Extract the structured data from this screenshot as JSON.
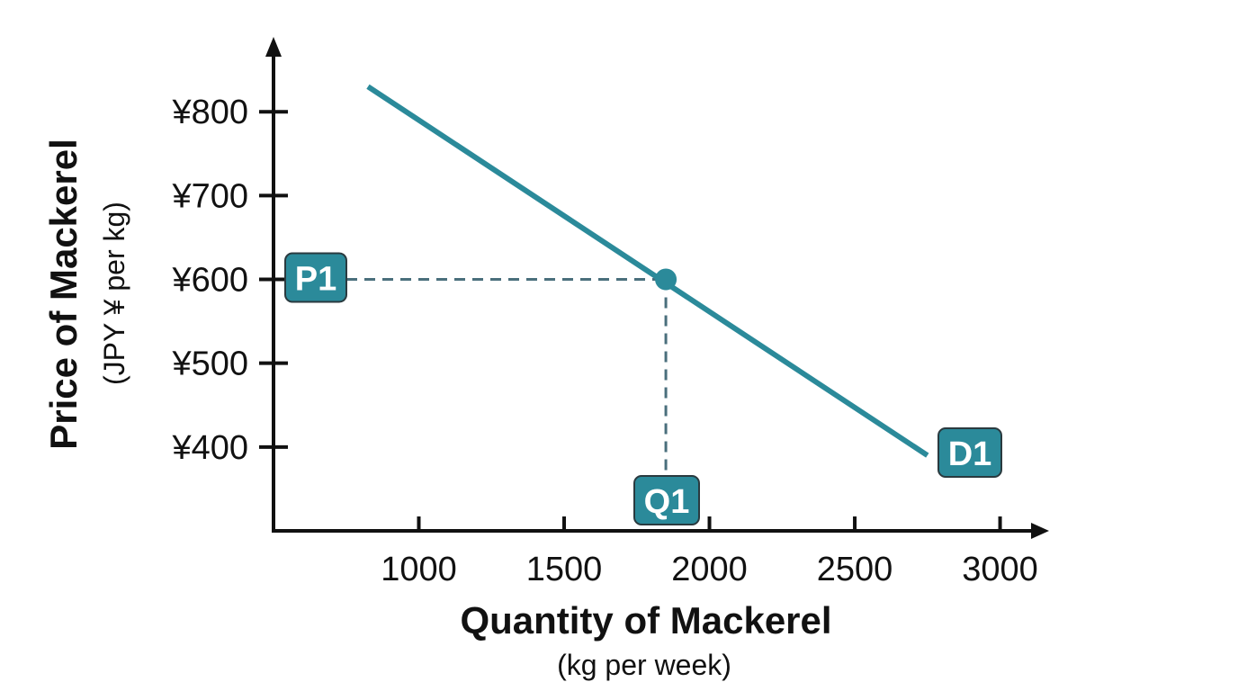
{
  "chart_data": {
    "type": "line",
    "title": "",
    "xlabel": "Quantity of Mackerel",
    "xlabel_sub": "(kg per week)",
    "ylabel": "Price of Mackerel",
    "ylabel_sub": "(JPY ¥ per kg)",
    "xlim": [
      500,
      3150
    ],
    "ylim": [
      300,
      885
    ],
    "x_ticks": [
      1000,
      1500,
      2000,
      2500,
      3000
    ],
    "x_tick_labels": [
      "1000",
      "1500",
      "2000",
      "2500",
      "3000"
    ],
    "y_ticks": [
      400,
      500,
      600,
      700,
      800
    ],
    "y_tick_labels": [
      "¥400",
      "¥500",
      "¥600",
      "¥700",
      "¥800"
    ],
    "series": [
      {
        "name": "D1",
        "color": "#2b8a9a",
        "points": [
          [
            825,
            830
          ],
          [
            2750,
            390
          ]
        ]
      }
    ],
    "equilibrium": {
      "x": 1850,
      "y": 600,
      "price_label": "P1",
      "quantity_label": "Q1"
    },
    "colors": {
      "curve": "#2b8a9a",
      "badge": "#2b8a9a",
      "guide": "#4a6f7c",
      "axis": "#111111"
    }
  }
}
